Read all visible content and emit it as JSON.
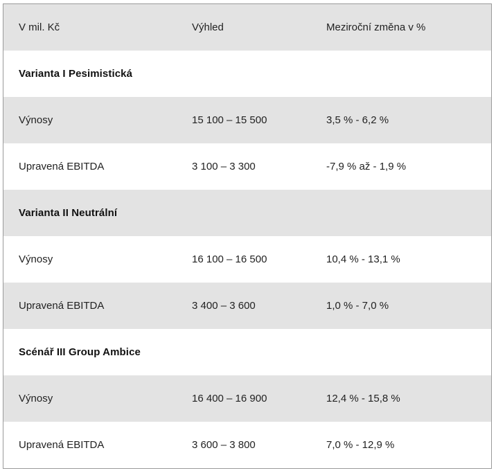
{
  "table": {
    "header": [
      "V mil. Kč",
      "Výhled",
      "Meziroční změna v %"
    ],
    "rows": [
      {
        "label": "Varianta I Pesimistická",
        "outlook": "",
        "change": "",
        "section": true
      },
      {
        "label": "Výnosy",
        "outlook": "15 100 – 15 500",
        "change": "3,5 % - 6,2 %"
      },
      {
        "label": "Upravená EBITDA",
        "outlook": "3 100 – 3 300",
        "change": "-7,9 % až - 1,9 %"
      },
      {
        "label": "Varianta II Neutrální",
        "outlook": "",
        "change": "",
        "section": true
      },
      {
        "label": "Výnosy",
        "outlook": "16 100 – 16 500",
        "change": "10,4 % - 13,1 %"
      },
      {
        "label": "Upravená EBITDA",
        "outlook": "3 400 – 3 600",
        "change": "1,0 % - 7,0 %"
      },
      {
        "label": "Scénář III Group Ambice",
        "outlook": "",
        "change": "",
        "section": true
      },
      {
        "label": "Výnosy",
        "outlook": "16 400 – 16 900",
        "change": "12,4 % - 15,8 %"
      },
      {
        "label": "Upravená EBITDA",
        "outlook": "3 600 – 3 800",
        "change": "7,0 % - 12,9 %"
      }
    ]
  }
}
